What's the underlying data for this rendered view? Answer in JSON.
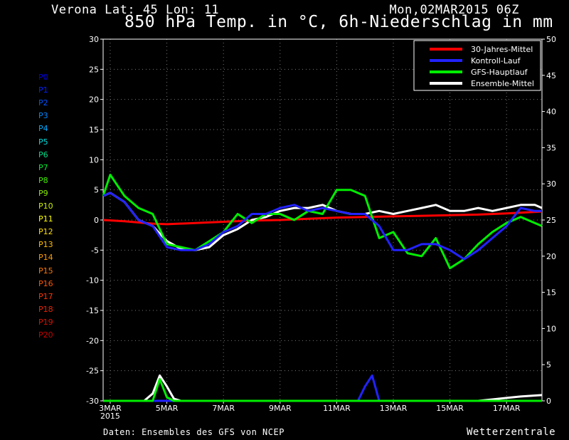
{
  "header": {
    "location": "Verona   Lat: 45 Lon: 11",
    "run": "Mon,02MAR2015 06Z",
    "title": "850 hPa Temp. in °C, 6h-Niederschlag in mm"
  },
  "members": [
    {
      "label": "P0",
      "color": "#0000ee"
    },
    {
      "label": "P1",
      "color": "#0022ff"
    },
    {
      "label": "P2",
      "color": "#0055ff"
    },
    {
      "label": "P3",
      "color": "#0088ff"
    },
    {
      "label": "P4",
      "color": "#00aaff"
    },
    {
      "label": "P5",
      "color": "#00dddd"
    },
    {
      "label": "P6",
      "color": "#00dd88"
    },
    {
      "label": "P7",
      "color": "#00ee33"
    },
    {
      "label": "P8",
      "color": "#44ee00"
    },
    {
      "label": "P9",
      "color": "#88ee00"
    },
    {
      "label": "P10",
      "color": "#ccee00"
    },
    {
      "label": "P11",
      "color": "#ffff00"
    },
    {
      "label": "P12",
      "color": "#ffdd00"
    },
    {
      "label": "P13",
      "color": "#ffbb00"
    },
    {
      "label": "P14",
      "color": "#ff9900"
    },
    {
      "label": "P15",
      "color": "#ff7700"
    },
    {
      "label": "P16",
      "color": "#ff5500"
    },
    {
      "label": "P17",
      "color": "#ff3300"
    },
    {
      "label": "P18",
      "color": "#ee2200"
    },
    {
      "label": "P19",
      "color": "#dd1100"
    },
    {
      "label": "P20",
      "color": "#cc0000"
    }
  ],
  "footer": {
    "source": "Daten: Ensembles des GFS von NCEP",
    "brand": "Wetterzentrale"
  },
  "chart_data": {
    "type": "line",
    "x_start_day": 2.75,
    "x_end_day": 18.25,
    "x_ticks": [
      {
        "day": 3,
        "label": "3MAR",
        "sublabel": "2015"
      },
      {
        "day": 5,
        "label": "5MAR"
      },
      {
        "day": 7,
        "label": "7MAR"
      },
      {
        "day": 9,
        "label": "9MAR"
      },
      {
        "day": 11,
        "label": "11MAR"
      },
      {
        "day": 13,
        "label": "13MAR"
      },
      {
        "day": 15,
        "label": "15MAR"
      },
      {
        "day": 17,
        "label": "17MAR"
      }
    ],
    "y_left": {
      "min": -30,
      "max": 30,
      "step": 5,
      "label": "850 hPa Temp. (°C)"
    },
    "y_right": {
      "min": 0,
      "max": 50,
      "step": 5,
      "label": "6h-Niederschlag (mm)"
    },
    "legend": [
      {
        "label": "30-Jahres-Mittel",
        "color": "#ff0000"
      },
      {
        "label": "Kontroll-Lauf",
        "color": "#2222ff"
      },
      {
        "label": "GFS-Hauptlauf",
        "color": "#00ee00"
      },
      {
        "label": "Ensemble-Mittel",
        "color": "#ffffff"
      }
    ],
    "series": [
      {
        "name": "30-Jahres-Mittel",
        "color": "#ff0000",
        "width": 3,
        "axis": "left",
        "points": [
          [
            2.75,
            0
          ],
          [
            3.5,
            -0.2
          ],
          [
            4.5,
            -0.6
          ],
          [
            5,
            -0.7
          ],
          [
            6,
            -0.5
          ],
          [
            7,
            -0.3
          ],
          [
            8,
            -0.1
          ],
          [
            9,
            0
          ],
          [
            10,
            0.2
          ],
          [
            11,
            0.4
          ],
          [
            12,
            0.5
          ],
          [
            13,
            0.6
          ],
          [
            14,
            0.7
          ],
          [
            15,
            0.8
          ],
          [
            16,
            0.9
          ],
          [
            17,
            1.1
          ],
          [
            18.25,
            1.4
          ]
        ]
      },
      {
        "name": "Ensemble-Mittel",
        "color": "#ffffff",
        "width": 3,
        "axis": "left",
        "points": [
          [
            2.75,
            4
          ],
          [
            3,
            4.5
          ],
          [
            3.5,
            3
          ],
          [
            4,
            0
          ],
          [
            4.5,
            -1
          ],
          [
            5,
            -3.5
          ],
          [
            5.5,
            -4.8
          ],
          [
            6,
            -5
          ],
          [
            6.5,
            -4.5
          ],
          [
            7,
            -2.5
          ],
          [
            7.5,
            -1.5
          ],
          [
            8,
            0
          ],
          [
            8.5,
            0.5
          ],
          [
            9,
            1.5
          ],
          [
            9.5,
            2
          ],
          [
            10,
            2
          ],
          [
            10.5,
            2.5
          ],
          [
            11,
            1.5
          ],
          [
            11.5,
            1
          ],
          [
            12,
            1
          ],
          [
            12.5,
            1.5
          ],
          [
            13,
            1
          ],
          [
            13.5,
            1.5
          ],
          [
            14,
            2
          ],
          [
            14.5,
            2.5
          ],
          [
            15,
            1.5
          ],
          [
            15.5,
            1.5
          ],
          [
            16,
            2
          ],
          [
            16.5,
            1.5
          ],
          [
            17,
            2
          ],
          [
            17.5,
            2.5
          ],
          [
            18,
            2.5
          ],
          [
            18.25,
            2
          ]
        ]
      },
      {
        "name": "GFS-Hauptlauf",
        "color": "#00ee00",
        "width": 3,
        "axis": "left",
        "points": [
          [
            2.75,
            4
          ],
          [
            3,
            7.5
          ],
          [
            3.5,
            4
          ],
          [
            4,
            2
          ],
          [
            4.5,
            1
          ],
          [
            5,
            -4
          ],
          [
            5.5,
            -4.5
          ],
          [
            6,
            -5
          ],
          [
            6.5,
            -3.5
          ],
          [
            7,
            -2
          ],
          [
            7.5,
            1
          ],
          [
            8,
            -0.5
          ],
          [
            8.5,
            1
          ],
          [
            9,
            1
          ],
          [
            9.5,
            0
          ],
          [
            10,
            1.5
          ],
          [
            10.5,
            1
          ],
          [
            11,
            5
          ],
          [
            11.5,
            5
          ],
          [
            12,
            4
          ],
          [
            12.5,
            -3
          ],
          [
            13,
            -2
          ],
          [
            13.5,
            -5.5
          ],
          [
            14,
            -6
          ],
          [
            14.5,
            -3
          ],
          [
            15,
            -8
          ],
          [
            15.5,
            -6.5
          ],
          [
            16,
            -4
          ],
          [
            16.5,
            -2
          ],
          [
            17,
            -0.5
          ],
          [
            17.5,
            0.5
          ],
          [
            18,
            -0.5
          ],
          [
            18.25,
            -1
          ]
        ]
      },
      {
        "name": "Kontroll-Lauf",
        "color": "#2222ff",
        "width": 3,
        "axis": "left",
        "points": [
          [
            2.75,
            4
          ],
          [
            3,
            4.5
          ],
          [
            3.5,
            3
          ],
          [
            4,
            0
          ],
          [
            4.5,
            -1
          ],
          [
            5,
            -4.5
          ],
          [
            5.5,
            -5
          ],
          [
            6,
            -5
          ],
          [
            6.5,
            -4
          ],
          [
            7,
            -2
          ],
          [
            7.5,
            -1
          ],
          [
            8,
            1
          ],
          [
            8.5,
            1
          ],
          [
            9,
            2
          ],
          [
            9.5,
            2.5
          ],
          [
            10,
            1.5
          ],
          [
            10.5,
            2
          ],
          [
            11,
            1.5
          ],
          [
            11.5,
            1
          ],
          [
            12,
            1
          ],
          [
            12.5,
            -1
          ],
          [
            13,
            -5
          ],
          [
            13.5,
            -5
          ],
          [
            14,
            -4
          ],
          [
            14.5,
            -4
          ],
          [
            15,
            -5
          ],
          [
            15.5,
            -6.5
          ],
          [
            16,
            -5
          ],
          [
            16.5,
            -3
          ],
          [
            17,
            -1
          ],
          [
            17.5,
            2
          ],
          [
            18,
            1.5
          ],
          [
            18.25,
            1.5
          ]
        ]
      },
      {
        "name": "Kontroll-Lauf Niederschlag",
        "color": "#2222ff",
        "width": 3,
        "axis": "right",
        "points": [
          [
            2.75,
            0
          ],
          [
            11.75,
            0
          ],
          [
            12,
            2
          ],
          [
            12.25,
            3.5
          ],
          [
            12.5,
            0
          ],
          [
            18.25,
            0
          ]
        ]
      },
      {
        "name": "Ensemble-Mittel Niederschlag",
        "color": "#ffffff",
        "width": 3,
        "axis": "right",
        "points": [
          [
            2.75,
            0
          ],
          [
            4.2,
            0
          ],
          [
            4.5,
            1
          ],
          [
            4.75,
            3.5
          ],
          [
            5,
            2
          ],
          [
            5.25,
            0.3
          ],
          [
            5.5,
            0
          ],
          [
            16,
            0
          ],
          [
            16.5,
            0.2
          ],
          [
            17,
            0.4
          ],
          [
            17.5,
            0.6
          ],
          [
            18.25,
            0.8
          ]
        ]
      },
      {
        "name": "GFS-Hauptlauf Niederschlag",
        "color": "#00ee00",
        "width": 3,
        "axis": "right",
        "points": [
          [
            2.75,
            0
          ],
          [
            4.5,
            0
          ],
          [
            4.75,
            3
          ],
          [
            5,
            0.5
          ],
          [
            5.25,
            0
          ],
          [
            18.25,
            0
          ]
        ]
      }
    ]
  }
}
